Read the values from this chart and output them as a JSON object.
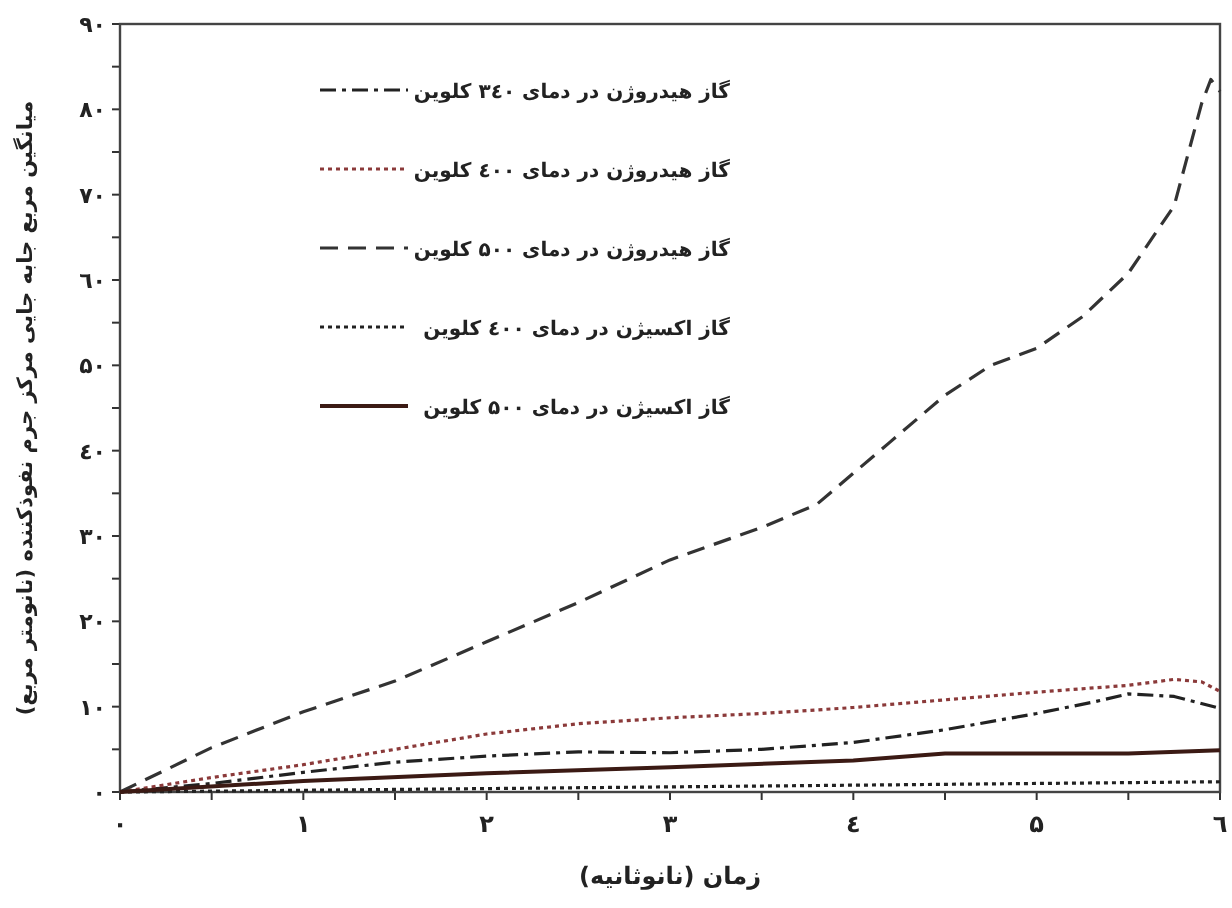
{
  "chart_data": {
    "type": "line",
    "xlabel": "زمان (نانوثانیه)",
    "ylabel": "میانگین مربع جابه جایی مرکز جرم نفوذکننده (نانومتر مربع)",
    "xlim": [
      0,
      6
    ],
    "ylim": [
      0,
      90
    ],
    "xticks": [
      {
        "value": 0,
        "label": "۰"
      },
      {
        "value": 0.5,
        "label": null
      },
      {
        "value": 1,
        "label": "۱"
      },
      {
        "value": 1.5,
        "label": null
      },
      {
        "value": 2,
        "label": "۲"
      },
      {
        "value": 2.5,
        "label": null
      },
      {
        "value": 3,
        "label": "۳"
      },
      {
        "value": 3.5,
        "label": null
      },
      {
        "value": 4,
        "label": "٤"
      },
      {
        "value": 4.5,
        "label": null
      },
      {
        "value": 5,
        "label": "۵"
      },
      {
        "value": 5.5,
        "label": null
      },
      {
        "value": 6,
        "label": "٦"
      }
    ],
    "yticks": [
      {
        "value": 0,
        "label": "۰"
      },
      {
        "value": 5,
        "label": null
      },
      {
        "value": 10,
        "label": "۱۰"
      },
      {
        "value": 15,
        "label": null
      },
      {
        "value": 20,
        "label": "۲۰"
      },
      {
        "value": 25,
        "label": null
      },
      {
        "value": 30,
        "label": "۳۰"
      },
      {
        "value": 35,
        "label": null
      },
      {
        "value": 40,
        "label": "٤۰"
      },
      {
        "value": 45,
        "label": null
      },
      {
        "value": 50,
        "label": "۵۰"
      },
      {
        "value": 55,
        "label": null
      },
      {
        "value": 60,
        "label": "٦۰"
      },
      {
        "value": 65,
        "label": null
      },
      {
        "value": 70,
        "label": "۷۰"
      },
      {
        "value": 75,
        "label": null
      },
      {
        "value": 80,
        "label": "۸۰"
      },
      {
        "value": 85,
        "label": null
      },
      {
        "value": 90,
        "label": "۹۰"
      }
    ],
    "grid": false,
    "legend": "top left",
    "marker": "none",
    "series": [
      {
        "name": "گاز هیدروژن در دمای ۳٤۰ کلوین",
        "color": "#222222",
        "line_style": "dashdot",
        "x": [
          0,
          0.5,
          1,
          1.5,
          2,
          2.5,
          3,
          3.5,
          4,
          4.5,
          5,
          5.3,
          5.5,
          5.75,
          6
        ],
        "values": [
          0,
          1,
          2.3,
          3.5,
          4.2,
          4.7,
          4.6,
          5,
          5.8,
          7.3,
          9.2,
          10.5,
          11.5,
          11.2,
          9.8
        ]
      },
      {
        "name": "گاز هیدروژن در دمای ٤۰۰ کلوین",
        "color": "#8b3a3a",
        "line_style": "dotted",
        "x": [
          0,
          0.5,
          1,
          1.5,
          2,
          2.5,
          3,
          3.5,
          4,
          4.5,
          5,
          5.5,
          5.75,
          5.9,
          6
        ],
        "values": [
          0,
          1.7,
          3.2,
          5,
          6.8,
          8,
          8.7,
          9.2,
          9.9,
          10.8,
          11.7,
          12.5,
          13.2,
          12.9,
          11.8
        ]
      },
      {
        "name": "گاز هیدروژن در دمای ۵۰۰ کلوین",
        "color": "#333333",
        "line_style": "dashed",
        "x": [
          0,
          0.5,
          1,
          1.5,
          2,
          2.5,
          3,
          3.5,
          3.8,
          4.2,
          4.5,
          4.75,
          5,
          5.25,
          5.5,
          5.75,
          5.9,
          5.95,
          6
        ],
        "values": [
          0,
          5.2,
          9.4,
          13,
          17.6,
          22.2,
          27.2,
          31,
          33.7,
          41,
          46.5,
          50,
          52,
          55.7,
          60.8,
          68.7,
          80.7,
          83.5,
          82.1
        ]
      },
      {
        "name": "گاز اکسیژن در دمای ٤۰۰ کلوین",
        "color": "#222222",
        "line_style": "dotted",
        "x": [
          0,
          1,
          2,
          3,
          4,
          5,
          6
        ],
        "values": [
          0,
          0.2,
          0.4,
          0.6,
          0.8,
          1,
          1.2
        ]
      },
      {
        "name": "گاز اکسیژن در دمای ۵۰۰ کلوین",
        "color": "#3b1a14",
        "line_style": "solid",
        "x": [
          0,
          1,
          2,
          3,
          4,
          4.5,
          5,
          5.5,
          6
        ],
        "values": [
          0,
          1.3,
          2.2,
          2.9,
          3.7,
          4.5,
          4.5,
          4.5,
          4.9
        ]
      }
    ]
  }
}
